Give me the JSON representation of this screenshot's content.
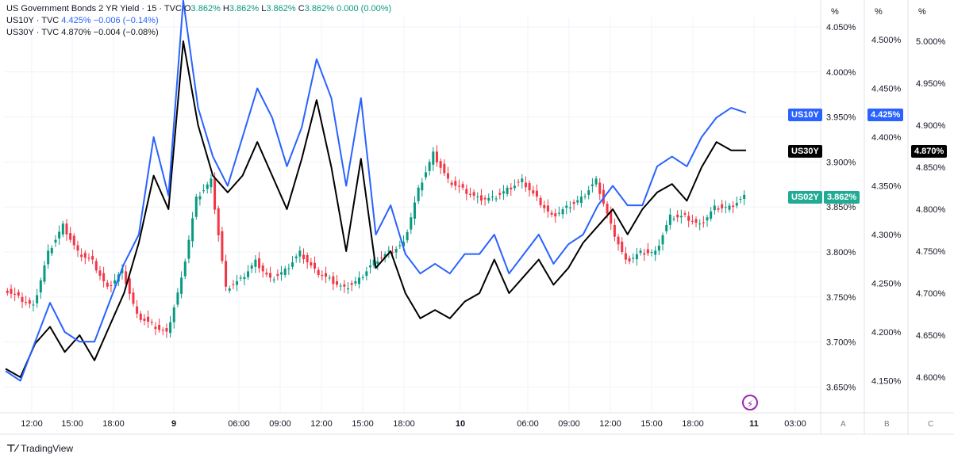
{
  "legend": {
    "row1": {
      "symbol": "US Government Bonds 2 YR Yield · 15 · TVC",
      "o_label": "O",
      "o": "3.862%",
      "h_label": "H",
      "h": "3.862%",
      "l_label": "L",
      "l": "3.862%",
      "c_label": "C",
      "c": "3.862%",
      "chg": "0.000 (0.00%)"
    },
    "row2": {
      "symbol": "US10Y · TVC",
      "last": "4.425%",
      "chg": "−0.006 (−0.14%)"
    },
    "row3": {
      "symbol": "US30Y · TVC",
      "last": "4.870%",
      "chg": "−0.004 (−0.08%)"
    }
  },
  "tags": {
    "us10y": {
      "label": "US10Y",
      "value": "4.425%"
    },
    "us30y": {
      "label": "US30Y",
      "value": "4.870%"
    },
    "us02y": {
      "label": "US02Y",
      "value": "3.862%"
    }
  },
  "axes": {
    "unit": "%",
    "letters": [
      "A",
      "B",
      "C"
    ],
    "a_ticks": [
      "4.050%",
      "4.000%",
      "3.950%",
      "3.900%",
      "3.850%",
      "3.800%",
      "3.750%",
      "3.700%",
      "3.650%"
    ],
    "b_ticks": [
      "4.500%",
      "4.450%",
      "4.400%",
      "4.350%",
      "4.300%",
      "4.250%",
      "4.200%",
      "4.150%"
    ],
    "c_ticks": [
      "5.000%",
      "4.950%",
      "4.900%",
      "4.850%",
      "4.800%",
      "4.750%",
      "4.700%",
      "4.650%",
      "4.600%"
    ],
    "x_ticks": [
      "12:00",
      "15:00",
      "18:00",
      "9",
      "06:00",
      "09:00",
      "12:00",
      "15:00",
      "18:00",
      "10",
      "06:00",
      "09:00",
      "12:00",
      "15:00",
      "18:00",
      "11",
      "03:00"
    ]
  },
  "footer": {
    "brand": "TradingView"
  },
  "colors": {
    "up": "#089981",
    "down": "#f23645",
    "us10y": "#2962ff",
    "us30y": "#000000",
    "us02y_tag": "#22ab94"
  },
  "chart_data": {
    "type": "line",
    "x": [
      0,
      1,
      2,
      3,
      4,
      5,
      6,
      7,
      8,
      9,
      10,
      11,
      12,
      13,
      14,
      15,
      16,
      17,
      18,
      19,
      20,
      21,
      22,
      23,
      24,
      25,
      26,
      27,
      28,
      29,
      30,
      31,
      32,
      33,
      34,
      35,
      36,
      37,
      38,
      39,
      40,
      41,
      42,
      43,
      44,
      45,
      46,
      47,
      48,
      49,
      50
    ],
    "series": [
      {
        "name": "US02Y",
        "axis": "A",
        "kind": "candles",
        "values": [
          3.76,
          3.75,
          3.74,
          3.8,
          3.83,
          3.8,
          3.79,
          3.76,
          3.78,
          3.73,
          3.72,
          3.71,
          3.77,
          3.86,
          3.88,
          3.76,
          3.77,
          3.79,
          3.77,
          3.78,
          3.8,
          3.78,
          3.77,
          3.76,
          3.77,
          3.79,
          3.8,
          3.81,
          3.87,
          3.91,
          3.88,
          3.87,
          3.86,
          3.86,
          3.87,
          3.88,
          3.86,
          3.84,
          3.85,
          3.86,
          3.88,
          3.83,
          3.79,
          3.8,
          3.8,
          3.84,
          3.84,
          3.83,
          3.85,
          3.85,
          3.862
        ]
      },
      {
        "name": "US10Y",
        "axis": "B",
        "values": [
          4.16,
          4.15,
          4.19,
          4.23,
          4.2,
          4.19,
          4.19,
          4.23,
          4.27,
          4.3,
          4.4,
          4.34,
          4.54,
          4.43,
          4.38,
          4.35,
          4.4,
          4.45,
          4.42,
          4.37,
          4.41,
          4.48,
          4.44,
          4.35,
          4.44,
          4.3,
          4.33,
          4.28,
          4.26,
          4.27,
          4.26,
          4.28,
          4.28,
          4.3,
          4.26,
          4.28,
          4.3,
          4.27,
          4.29,
          4.3,
          4.33,
          4.35,
          4.33,
          4.33,
          4.37,
          4.38,
          4.37,
          4.4,
          4.42,
          4.43,
          4.425
        ]
      },
      {
        "name": "US30Y",
        "axis": "C",
        "values": [
          4.61,
          4.6,
          4.64,
          4.66,
          4.63,
          4.65,
          4.62,
          4.66,
          4.7,
          4.76,
          4.84,
          4.8,
          5.0,
          4.9,
          4.84,
          4.82,
          4.84,
          4.88,
          4.84,
          4.8,
          4.86,
          4.93,
          4.85,
          4.75,
          4.86,
          4.73,
          4.75,
          4.7,
          4.67,
          4.68,
          4.67,
          4.69,
          4.7,
          4.74,
          4.7,
          4.72,
          4.74,
          4.71,
          4.73,
          4.76,
          4.78,
          4.8,
          4.77,
          4.8,
          4.82,
          4.83,
          4.81,
          4.85,
          4.88,
          4.87,
          4.87
        ]
      }
    ]
  }
}
